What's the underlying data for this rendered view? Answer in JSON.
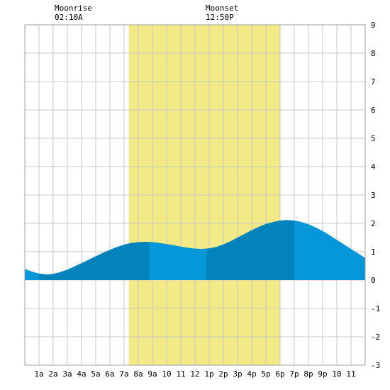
{
  "moon": {
    "rise_label": "Moonrise",
    "rise_time": "02:10A",
    "set_label": "Moonset",
    "set_time": "12:50P"
  },
  "chart_data": {
    "type": "area",
    "title": "",
    "xlabel": "",
    "ylabel": "",
    "grid": true,
    "x_unit": "hour",
    "xlim": [
      0,
      24
    ],
    "ylim": [
      -3,
      9
    ],
    "y_ticks": [
      -3,
      -2,
      -1,
      0,
      1,
      2,
      3,
      4,
      5,
      6,
      7,
      8,
      9
    ],
    "x_ticks": [
      1,
      2,
      3,
      4,
      5,
      6,
      7,
      8,
      9,
      10,
      11,
      12,
      13,
      14,
      15,
      16,
      17,
      18,
      19,
      20,
      21,
      22,
      23
    ],
    "x_tick_labels": [
      "1a",
      "2a",
      "3a",
      "4a",
      "5a",
      "6a",
      "7a",
      "8a",
      "9a",
      "10",
      "11",
      "12",
      "1p",
      "2p",
      "3p",
      "4p",
      "5p",
      "6p",
      "7p",
      "8p",
      "9p",
      "10",
      "11"
    ],
    "highlight": {
      "label": "daylight",
      "start": 7.33,
      "end": 18.0,
      "color": "#f2ea86"
    },
    "colors": {
      "dark": "#0283bc",
      "light": "#0597d9",
      "grid": "#c8c8c8",
      "background": "#ffffff"
    },
    "series": [
      {
        "x": [
          0,
          0.5,
          1,
          1.5,
          2,
          2.5,
          3,
          3.5,
          4,
          4.5,
          5,
          5.5,
          6,
          6.5,
          7,
          7.5,
          8,
          8.5,
          9,
          9.5,
          10,
          10.5,
          11,
          11.5,
          12,
          12.5,
          13,
          13.5,
          14,
          14.5,
          15,
          15.5,
          16,
          16.5,
          17,
          17.5,
          18,
          18.5,
          19,
          19.5,
          20,
          20.5,
          21,
          21.5,
          22,
          22.5,
          23,
          23.5,
          24
        ],
        "y": [
          0.4,
          0.3,
          0.23,
          0.2,
          0.22,
          0.28,
          0.37,
          0.48,
          0.6,
          0.72,
          0.84,
          0.96,
          1.07,
          1.17,
          1.25,
          1.31,
          1.34,
          1.35,
          1.34,
          1.31,
          1.27,
          1.23,
          1.18,
          1.14,
          1.11,
          1.1,
          1.12,
          1.17,
          1.26,
          1.37,
          1.5,
          1.63,
          1.76,
          1.88,
          1.98,
          2.05,
          2.1,
          2.12,
          2.1,
          2.05,
          1.97,
          1.86,
          1.73,
          1.58,
          1.42,
          1.26,
          1.1,
          0.94,
          0.78
        ]
      }
    ],
    "bands": [
      {
        "start": 0,
        "end": 1.0,
        "tone": "light"
      },
      {
        "start": 1.0,
        "end": 8.8,
        "tone": "dark"
      },
      {
        "start": 8.8,
        "end": 12.8,
        "tone": "light"
      },
      {
        "start": 12.8,
        "end": 19.0,
        "tone": "dark"
      },
      {
        "start": 19.0,
        "end": 24,
        "tone": "light"
      }
    ]
  }
}
